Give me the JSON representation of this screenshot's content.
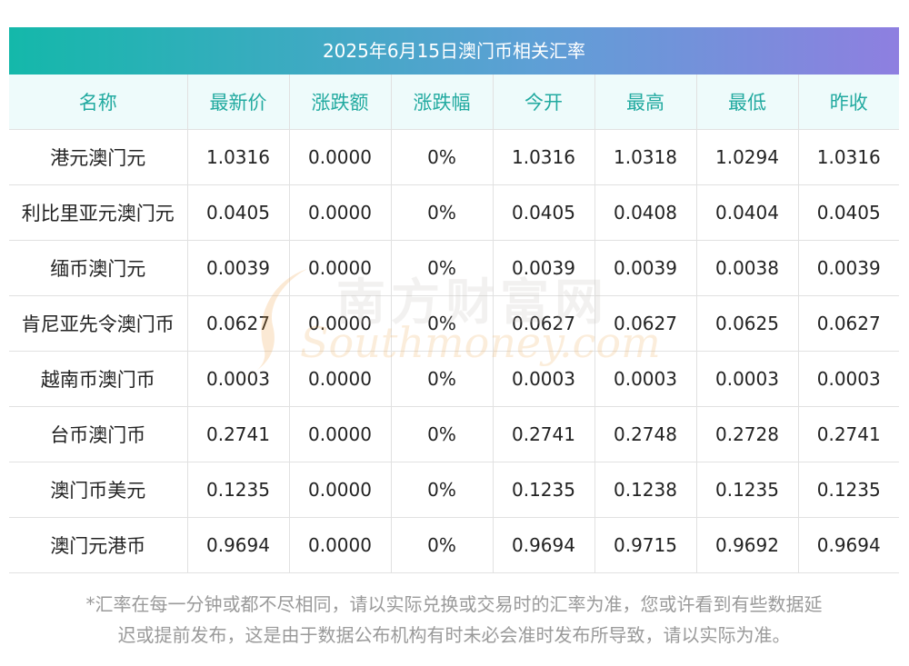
{
  "title": "2025年6月15日澳门币相关汇率",
  "columns": [
    "名称",
    "最新价",
    "涨跌额",
    "涨跌幅",
    "今开",
    "最高",
    "最低",
    "昨收"
  ],
  "rows": [
    [
      "港元澳门元",
      "1.0316",
      "0.0000",
      "0%",
      "1.0316",
      "1.0318",
      "1.0294",
      "1.0316"
    ],
    [
      "利比里亚元澳门元",
      "0.0405",
      "0.0000",
      "0%",
      "0.0405",
      "0.0408",
      "0.0404",
      "0.0405"
    ],
    [
      "缅币澳门元",
      "0.0039",
      "0.0000",
      "0%",
      "0.0039",
      "0.0039",
      "0.0038",
      "0.0039"
    ],
    [
      "肯尼亚先令澳门币",
      "0.0627",
      "0.0000",
      "0%",
      "0.0627",
      "0.0627",
      "0.0625",
      "0.0627"
    ],
    [
      "越南币澳门币",
      "0.0003",
      "0.0000",
      "0%",
      "0.0003",
      "0.0003",
      "0.0003",
      "0.0003"
    ],
    [
      "台币澳门币",
      "0.2741",
      "0.0000",
      "0%",
      "0.2741",
      "0.2748",
      "0.2728",
      "0.2741"
    ],
    [
      "澳门币美元",
      "0.1235",
      "0.0000",
      "0%",
      "0.1235",
      "0.1238",
      "0.1235",
      "0.1235"
    ],
    [
      "澳门元港币",
      "0.9694",
      "0.0000",
      "0%",
      "0.9694",
      "0.9715",
      "0.9692",
      "0.9694"
    ]
  ],
  "watermark": {
    "cn": "南方财富网",
    "en": "Southmoney.com"
  },
  "footnote": {
    "line1": "*汇率在每一分钟或都不尽相同，请以实际兑换或交易时的汇率为准，您或许看到有些数据延",
    "line2": "迟或提前发布，这是由于数据公布机构有时未必会准时发布所导致，请以实际为准。"
  },
  "colors": {
    "header_text": "#22aaa0",
    "header_bg": "#eefbfb",
    "title_gradient_start": "#14b8aa",
    "title_gradient_end": "#8e7fe0"
  }
}
